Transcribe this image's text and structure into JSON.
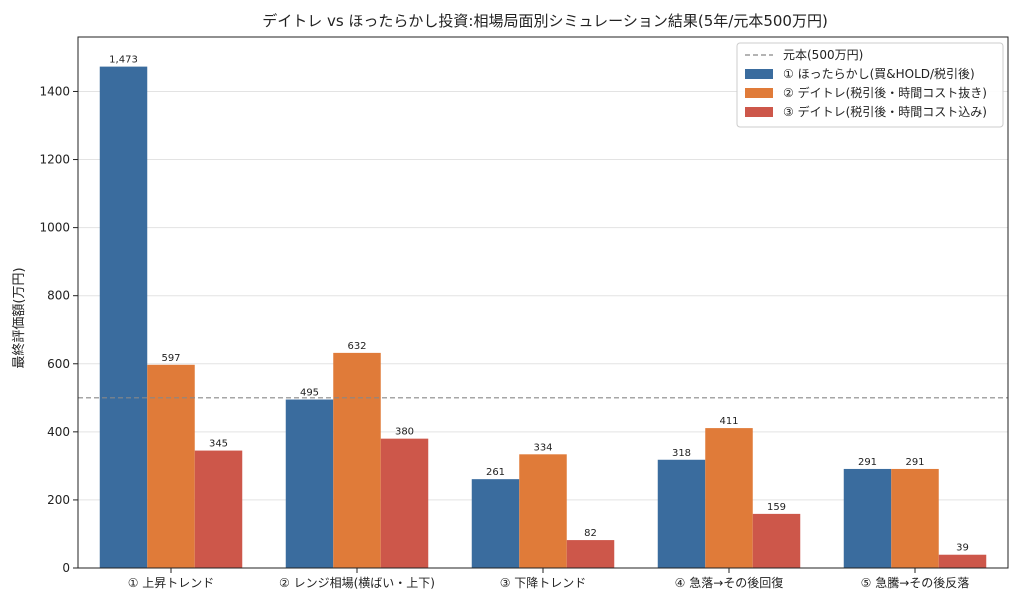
{
  "chart_data": {
    "type": "bar",
    "title": "デイトレ vs ほったらかし投資:相場局面別シミュレーション結果(5年/元本500万円)",
    "xlabel": "",
    "ylabel": "最終評価額(万円)",
    "ylim": [
      0,
      1560
    ],
    "yticks": [
      0,
      200,
      400,
      600,
      800,
      1000,
      1200,
      1400
    ],
    "grid": "horizontal",
    "legend_position": "top-right",
    "categories": [
      "① 上昇トレンド",
      "② レンジ相場(横ばい・上下)",
      "③ 下降トレンド",
      "④ 急落→その後回復",
      "⑤ 急騰→その後反落"
    ],
    "series": [
      {
        "name": "① ほったらかし(買&HOLD/税引後)",
        "color": "#3a6c9e",
        "values": [
          1473,
          495,
          261,
          318,
          291
        ],
        "labels": [
          "1,473",
          "495",
          "261",
          "318",
          "291"
        ]
      },
      {
        "name": "② デイトレ(税引後・時間コスト抜き)",
        "color": "#e07b39",
        "values": [
          597,
          632,
          334,
          411,
          291
        ],
        "labels": [
          "597",
          "632",
          "334",
          "411",
          "291"
        ]
      },
      {
        "name": "③ デイトレ(税引後・時間コスト込み)",
        "color": "#cd574a",
        "values": [
          345,
          380,
          82,
          159,
          39
        ],
        "labels": [
          "345",
          "380",
          "82",
          "159",
          "39"
        ]
      }
    ],
    "reference_line": {
      "name": "元本(500万円)",
      "value": 500,
      "color": "#888888"
    }
  }
}
